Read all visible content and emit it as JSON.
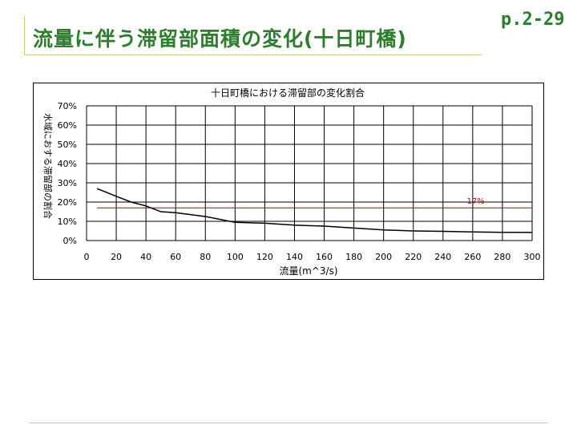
{
  "slide": {
    "title": "流量に伴う滞留部面積の変化(十日町橋)",
    "page_ref": "p.2-29"
  },
  "chart_data": {
    "type": "line",
    "title": "十日町橋における滞留部の変化割合",
    "xlabel": "流量(m^3/s)",
    "ylabel": "水域におする滞留部の割合",
    "xlim": [
      0,
      300
    ],
    "ylim": [
      0,
      0.7
    ],
    "x_ticks": [
      0,
      20,
      40,
      60,
      80,
      100,
      120,
      140,
      160,
      180,
      200,
      220,
      240,
      260,
      280,
      300
    ],
    "y_ticks": [
      0,
      0.1,
      0.2,
      0.3,
      0.4,
      0.5,
      0.6,
      0.7
    ],
    "y_tick_labels": [
      "0%",
      "10%",
      "20%",
      "30%",
      "40%",
      "50%",
      "60%",
      "70%"
    ],
    "grid": true,
    "series": [
      {
        "color": "#000000",
        "x": [
          7,
          20,
          30,
          40,
          50,
          60,
          70,
          80,
          100,
          120,
          140,
          160,
          180,
          200,
          220,
          240,
          260,
          280,
          300
        ],
        "y": [
          0.27,
          0.23,
          0.2,
          0.18,
          0.15,
          0.145,
          0.135,
          0.125,
          0.095,
          0.09,
          0.08,
          0.075,
          0.065,
          0.055,
          0.05,
          0.048,
          0.045,
          0.043,
          0.042
        ]
      }
    ],
    "reference_line": {
      "y": 0.17,
      "x_range": [
        7,
        300
      ],
      "label": "17%",
      "color": "#c00000"
    }
  }
}
